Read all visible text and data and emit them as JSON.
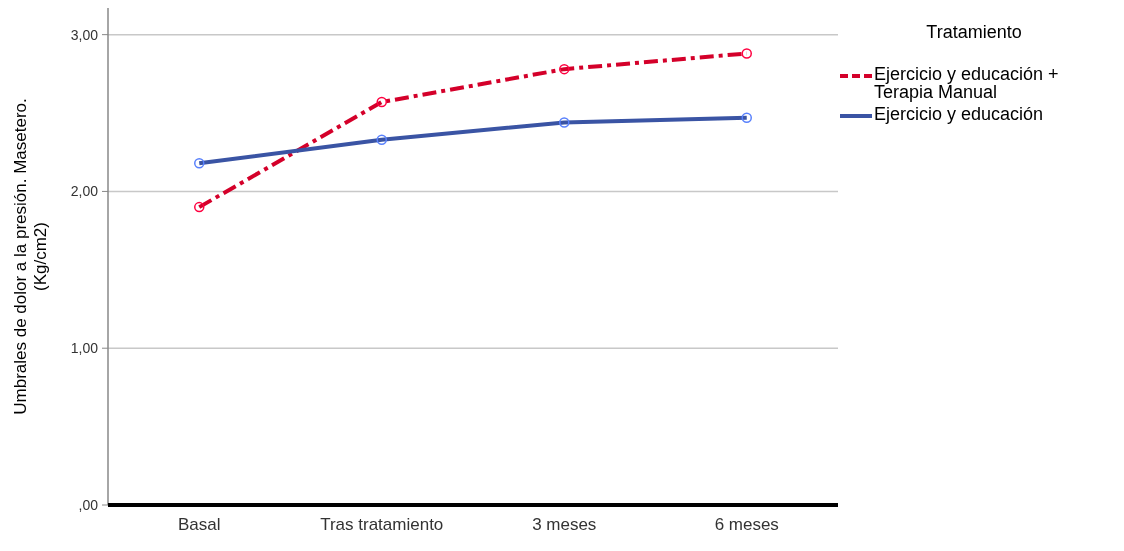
{
  "chart_data": {
    "type": "line",
    "ylabel": "Umbrales de dolor a la presión. Masetero. (Kg/cm2)",
    "legend_title": "Tratamiento",
    "categories": [
      "Basal",
      "Tras tratamiento",
      "3 meses",
      "6 meses"
    ],
    "series": [
      {
        "name": "Ejercicio y educación + Terapia Manual",
        "color": "#d4002a",
        "line_style": "dashed",
        "values": [
          1.9,
          2.57,
          2.78,
          2.88
        ]
      },
      {
        "name": "Ejercicio y educación",
        "color": "#3a54a4",
        "line_style": "solid",
        "values": [
          2.18,
          2.33,
          2.44,
          2.47
        ]
      }
    ],
    "ylim": [
      0,
      3.17
    ],
    "yticks": [
      {
        "value": 0,
        "label": ",00"
      },
      {
        "value": 1,
        "label": "1,00"
      },
      {
        "value": 2,
        "label": "2,00"
      },
      {
        "value": 3,
        "label": "3,00"
      }
    ],
    "grid": "y",
    "legend": "top right",
    "marker": "circle"
  }
}
